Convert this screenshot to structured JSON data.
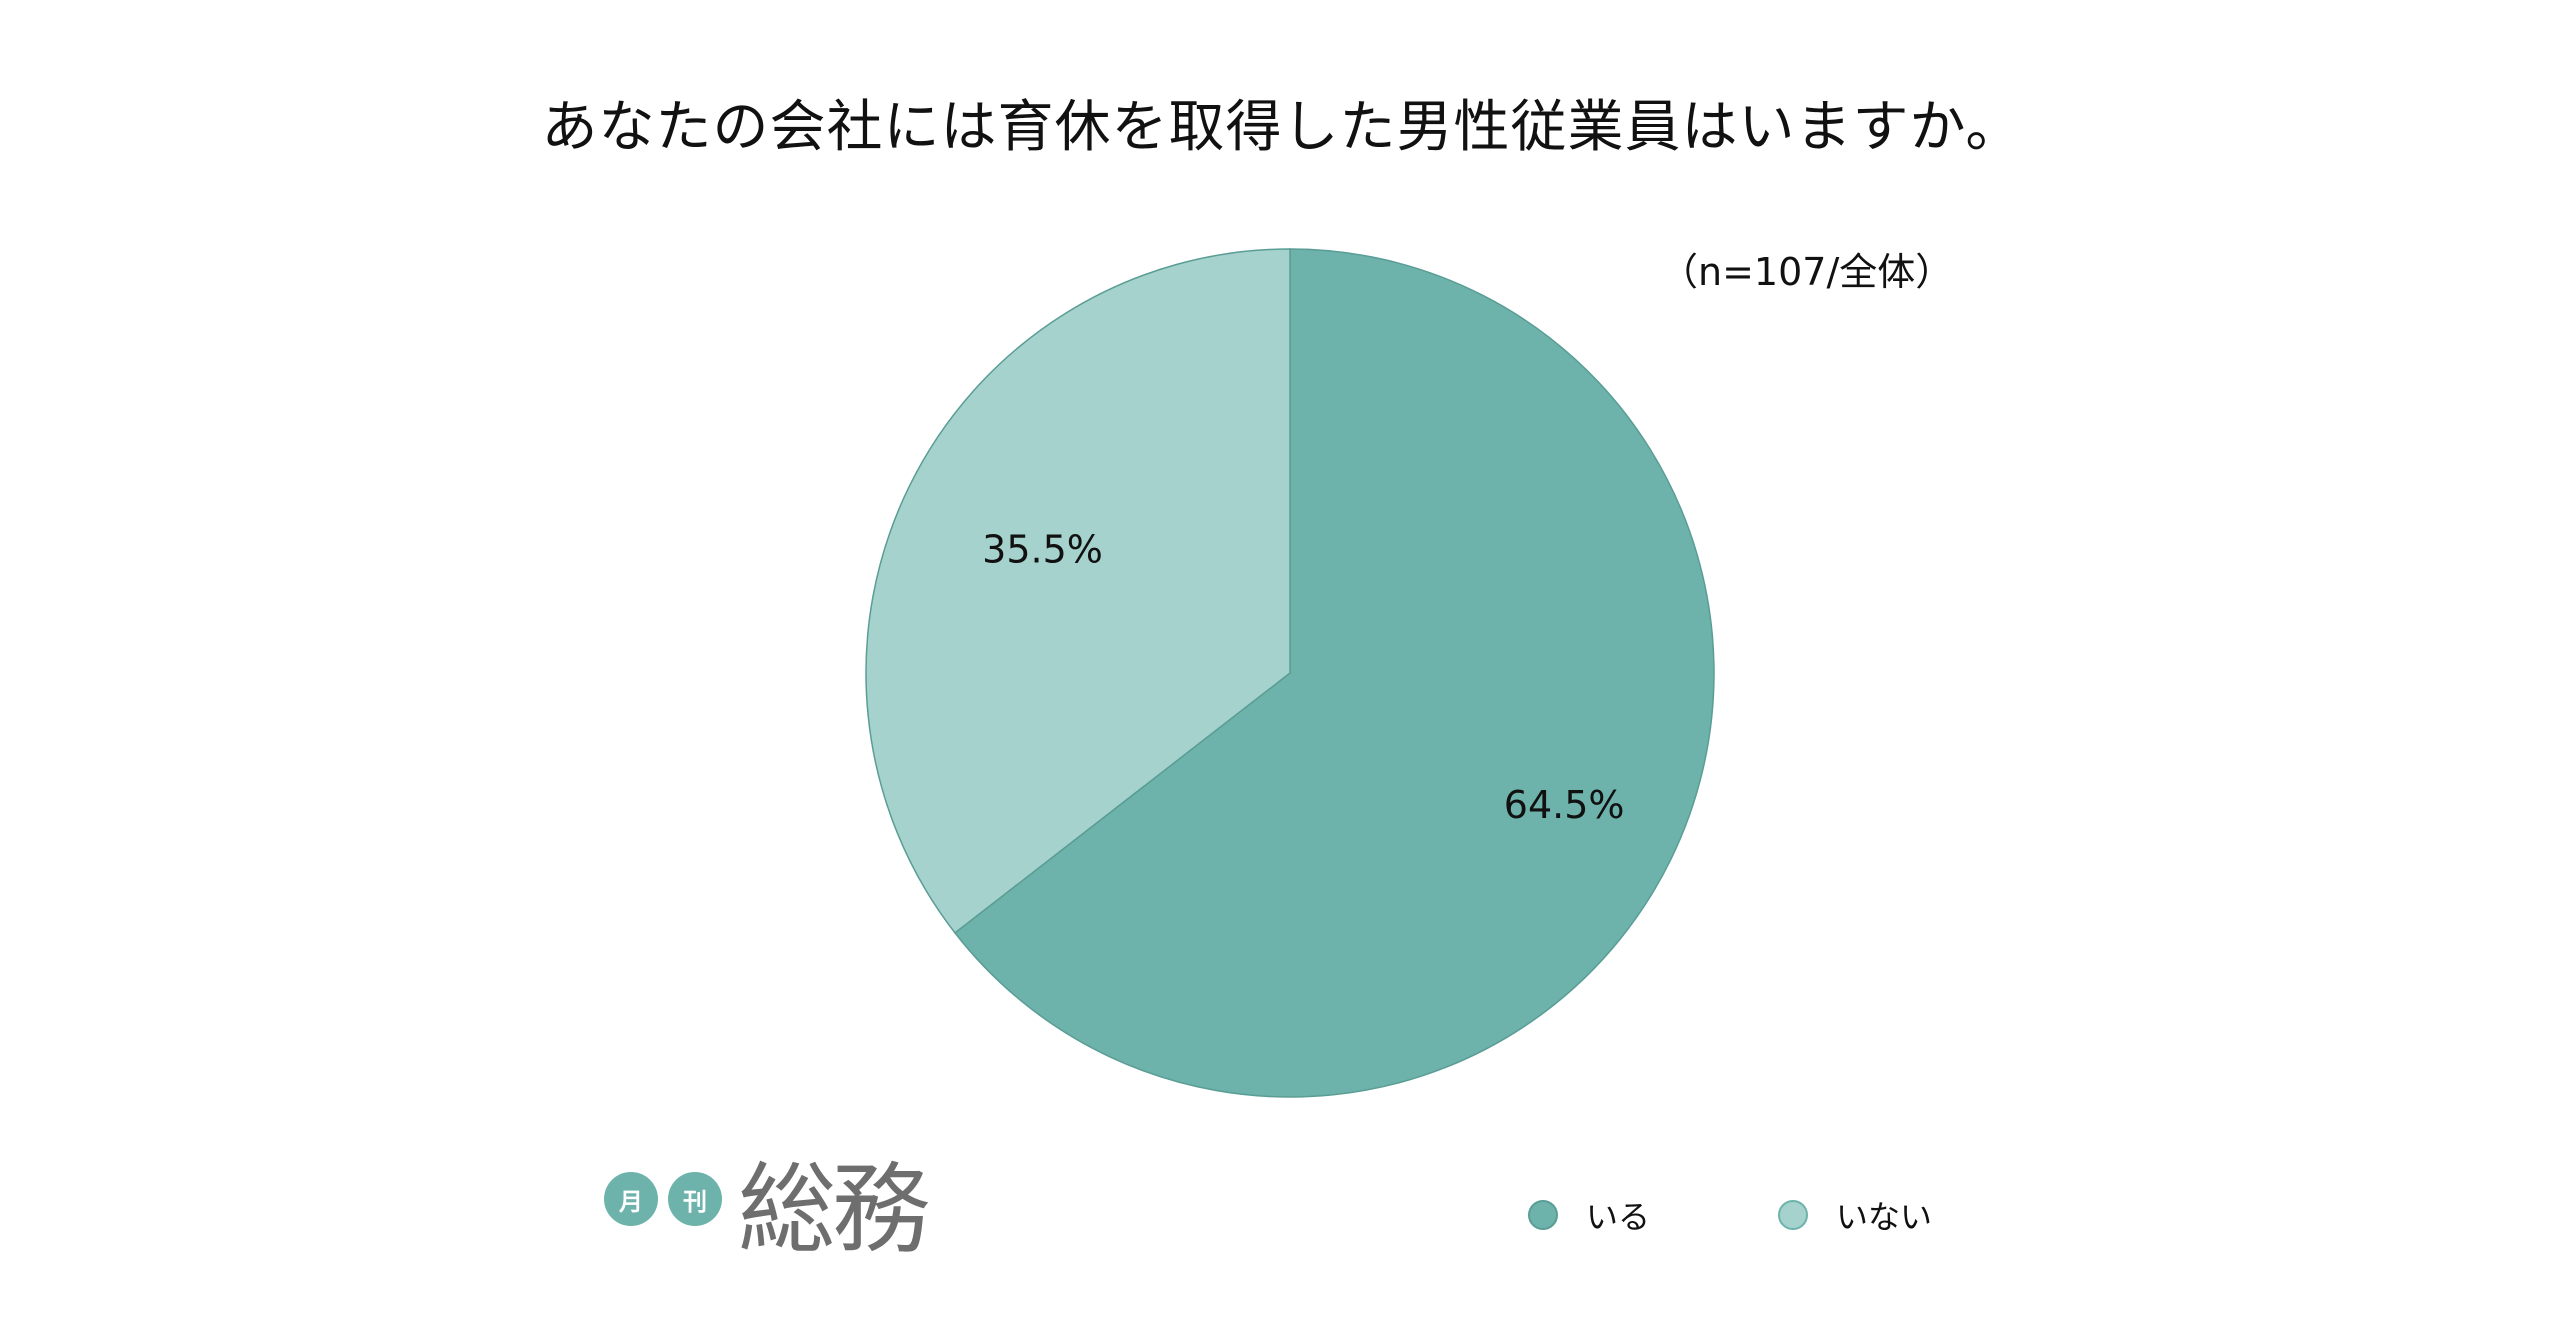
{
  "chart_data": {
    "type": "pie",
    "title": "あなたの会社には育休を取得した男性従業員はいますか。",
    "note": "（n=107/全体）",
    "categories": [
      "いる",
      "いない"
    ],
    "values": [
      64.5,
      35.5
    ],
    "value_labels": [
      "64.5%",
      "35.5%"
    ],
    "colors": [
      "#6db3ab",
      "#a5d2cd"
    ],
    "legend": "bottom-right",
    "grid": false
  },
  "branding": {
    "badge_1": "月",
    "badge_2": "刊",
    "name": "総務",
    "badge_color": "#6db3ab"
  }
}
